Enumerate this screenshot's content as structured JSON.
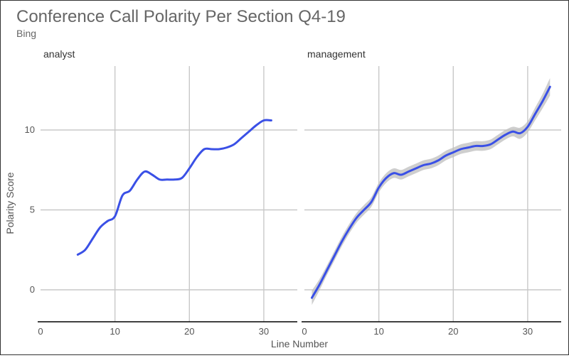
{
  "chart_data": {
    "type": "line",
    "title": "Conference Call Polarity Per Section Q4-19",
    "subtitle": "Bing",
    "xlabel": "Line Number",
    "ylabel": "Polarity Score",
    "ylim": [
      -2,
      14
    ],
    "y_ticks": [
      0,
      5,
      10
    ],
    "x_ticks": [
      0,
      10,
      20,
      30
    ],
    "grid": true,
    "line_color": "#3a50e6",
    "band_color": "#bdbdbd",
    "panels": [
      {
        "name": "analyst",
        "xlim": [
          0,
          34.5
        ],
        "x": [
          5,
          6,
          7,
          8,
          9,
          10,
          11,
          12,
          13,
          14,
          15,
          16,
          17,
          18,
          19,
          20,
          21,
          22,
          23,
          24,
          25,
          26,
          27,
          28,
          29,
          30,
          31
        ],
        "y": [
          2.2,
          2.5,
          3.2,
          3.9,
          4.3,
          4.6,
          5.9,
          6.2,
          6.9,
          7.4,
          7.2,
          6.9,
          6.9,
          6.9,
          7.0,
          7.6,
          8.3,
          8.8,
          8.8,
          8.8,
          8.9,
          9.1,
          9.5,
          9.9,
          10.3,
          10.6,
          10.6
        ],
        "band": []
      },
      {
        "name": "management",
        "xlim": [
          0,
          34.5
        ],
        "x": [
          1,
          2,
          3,
          4,
          5,
          6,
          7,
          8,
          9,
          10,
          11,
          12,
          13,
          14,
          15,
          16,
          17,
          18,
          19,
          20,
          21,
          22,
          23,
          24,
          25,
          26,
          27,
          28,
          29,
          30,
          31,
          32,
          33
        ],
        "y": [
          -0.5,
          0.3,
          1.2,
          2.1,
          3.0,
          3.8,
          4.5,
          5.0,
          5.5,
          6.4,
          7.0,
          7.3,
          7.2,
          7.4,
          7.6,
          7.8,
          7.9,
          8.1,
          8.4,
          8.6,
          8.8,
          8.9,
          9.0,
          9.0,
          9.1,
          9.4,
          9.7,
          9.9,
          9.8,
          10.2,
          11.0,
          11.8,
          12.7
        ],
        "band": [
          0.45,
          0.35,
          0.3,
          0.3,
          0.3,
          0.3,
          0.3,
          0.3,
          0.3,
          0.3,
          0.3,
          0.3,
          0.3,
          0.3,
          0.3,
          0.3,
          0.3,
          0.3,
          0.3,
          0.3,
          0.3,
          0.3,
          0.3,
          0.3,
          0.3,
          0.3,
          0.3,
          0.3,
          0.35,
          0.35,
          0.4,
          0.45,
          0.55
        ]
      }
    ]
  }
}
